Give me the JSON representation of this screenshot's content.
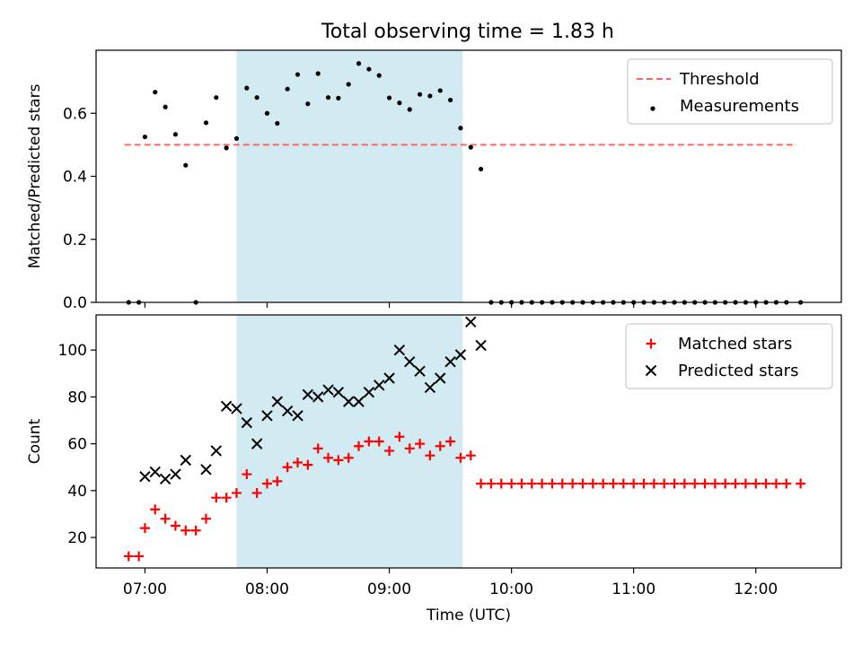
{
  "title": "Total observing time = 1.83 h",
  "colors": {
    "shade": "#add8e6",
    "threshold": "#ff6666",
    "matched": "#ff0000",
    "predicted": "#000000",
    "measurement": "#000000"
  },
  "chart_data": [
    {
      "type": "scatter",
      "panel": "top",
      "title": "Total observing time = 1.83 h",
      "xlabel": "",
      "ylabel": "Matched/Predicted stars",
      "xlim": [
        "06:36",
        "12:42"
      ],
      "ylim": [
        0,
        0.8
      ],
      "yticks": [
        0.0,
        0.2,
        0.4,
        0.6
      ],
      "ytick_labels": [
        "0.0",
        "0.2",
        "0.4",
        "0.6"
      ],
      "shaded_interval": [
        "07:45",
        "09:36"
      ],
      "legend_position": "top-right",
      "threshold": {
        "name": "Threshold",
        "y": 0.5,
        "x_range": [
          "06:50",
          "12:20"
        ],
        "style": "dashed"
      },
      "series": [
        {
          "name": "Measurements",
          "marker": "dot",
          "x": [
            "06:52",
            "06:57",
            "07:00",
            "07:05",
            "07:10",
            "07:15",
            "07:20",
            "07:25",
            "07:30",
            "07:35",
            "07:40",
            "07:45",
            "07:50",
            "07:55",
            "08:00",
            "08:05",
            "08:10",
            "08:15",
            "08:20",
            "08:25",
            "08:30",
            "08:35",
            "08:40",
            "08:45",
            "08:50",
            "08:55",
            "09:00",
            "09:05",
            "09:10",
            "09:15",
            "09:20",
            "09:25",
            "09:30",
            "09:35",
            "09:40",
            "09:45",
            "09:50",
            "09:55",
            "10:00",
            "10:05",
            "10:10",
            "10:15",
            "10:20",
            "10:25",
            "10:30",
            "10:35",
            "10:40",
            "10:45",
            "10:50",
            "10:55",
            "11:00",
            "11:05",
            "11:10",
            "11:15",
            "11:20",
            "11:25",
            "11:30",
            "11:35",
            "11:40",
            "11:45",
            "11:50",
            "11:55",
            "12:00",
            "12:05",
            "12:10",
            "12:15",
            "12:22"
          ],
          "y": [
            0.0,
            0.0,
            0.525,
            0.667,
            0.62,
            0.533,
            0.435,
            0.0,
            0.57,
            0.65,
            0.49,
            0.52,
            0.68,
            0.65,
            0.6,
            0.568,
            0.677,
            0.723,
            0.63,
            0.726,
            0.65,
            0.648,
            0.692,
            0.758,
            0.74,
            0.72,
            0.649,
            0.633,
            0.612,
            0.66,
            0.655,
            0.672,
            0.642,
            0.553,
            0.492,
            0.423,
            0.0,
            0.0,
            0.0,
            0.0,
            0.0,
            0.0,
            0.0,
            0.0,
            0.0,
            0.0,
            0.0,
            0.0,
            0.0,
            0.0,
            0.0,
            0.0,
            0.0,
            0.0,
            0.0,
            0.0,
            0.0,
            0.0,
            0.0,
            0.0,
            0.0,
            0.0,
            0.0,
            0.0,
            0.0,
            0.0,
            0.0
          ]
        }
      ]
    },
    {
      "type": "scatter",
      "panel": "bottom",
      "xlabel": "Time (UTC)",
      "ylabel": "Count",
      "xlim": [
        "06:36",
        "12:42"
      ],
      "ylim": [
        7,
        115
      ],
      "xticks": [
        "07:00",
        "08:00",
        "09:00",
        "10:00",
        "11:00",
        "12:00"
      ],
      "yticks": [
        20,
        40,
        60,
        80,
        100
      ],
      "shaded_interval": [
        "07:45",
        "09:36"
      ],
      "legend_position": "top-right",
      "series": [
        {
          "name": "Matched stars",
          "marker": "plus",
          "x": [
            "06:52",
            "06:57",
            "07:00",
            "07:05",
            "07:10",
            "07:15",
            "07:20",
            "07:25",
            "07:30",
            "07:35",
            "07:40",
            "07:45",
            "07:50",
            "07:55",
            "08:00",
            "08:05",
            "08:10",
            "08:15",
            "08:20",
            "08:25",
            "08:30",
            "08:35",
            "08:40",
            "08:45",
            "08:50",
            "08:55",
            "09:00",
            "09:05",
            "09:10",
            "09:15",
            "09:20",
            "09:25",
            "09:30",
            "09:35",
            "09:40",
            "09:45",
            "09:50",
            "09:55",
            "10:00",
            "10:05",
            "10:10",
            "10:15",
            "10:20",
            "10:25",
            "10:30",
            "10:35",
            "10:40",
            "10:45",
            "10:50",
            "10:55",
            "11:00",
            "11:05",
            "11:10",
            "11:15",
            "11:20",
            "11:25",
            "11:30",
            "11:35",
            "11:40",
            "11:45",
            "11:50",
            "11:55",
            "12:00",
            "12:05",
            "12:10",
            "12:15",
            "12:22"
          ],
          "y": [
            12,
            12,
            24,
            32,
            28,
            25,
            23,
            23,
            28,
            37,
            37,
            39,
            47,
            39,
            43,
            44,
            50,
            52,
            51,
            58,
            54,
            53,
            54,
            59,
            61,
            61,
            57,
            63,
            58,
            60,
            55,
            59,
            61,
            54,
            55,
            43,
            43,
            43,
            43,
            43,
            43,
            43,
            43,
            43,
            43,
            43,
            43,
            43,
            43,
            43,
            43,
            43,
            43,
            43,
            43,
            43,
            43,
            43,
            43,
            43,
            43,
            43,
            43,
            43,
            43,
            43,
            43
          ]
        },
        {
          "name": "Predicted stars",
          "marker": "x",
          "x": [
            "07:00",
            "07:05",
            "07:10",
            "07:15",
            "07:20",
            "07:30",
            "07:35",
            "07:40",
            "07:45",
            "07:50",
            "07:55",
            "08:00",
            "08:05",
            "08:10",
            "08:15",
            "08:20",
            "08:25",
            "08:30",
            "08:35",
            "08:40",
            "08:45",
            "08:50",
            "08:55",
            "09:00",
            "09:05",
            "09:10",
            "09:15",
            "09:20",
            "09:25",
            "09:30",
            "09:35",
            "09:40",
            "09:45"
          ],
          "y": [
            46,
            48,
            45,
            47,
            53,
            49,
            57,
            76,
            75,
            69,
            60,
            72,
            78,
            74,
            72,
            81,
            80,
            83,
            82,
            78,
            78,
            82,
            85,
            88,
            100,
            95,
            91,
            84,
            88,
            95,
            98,
            112,
            102
          ]
        }
      ]
    }
  ]
}
